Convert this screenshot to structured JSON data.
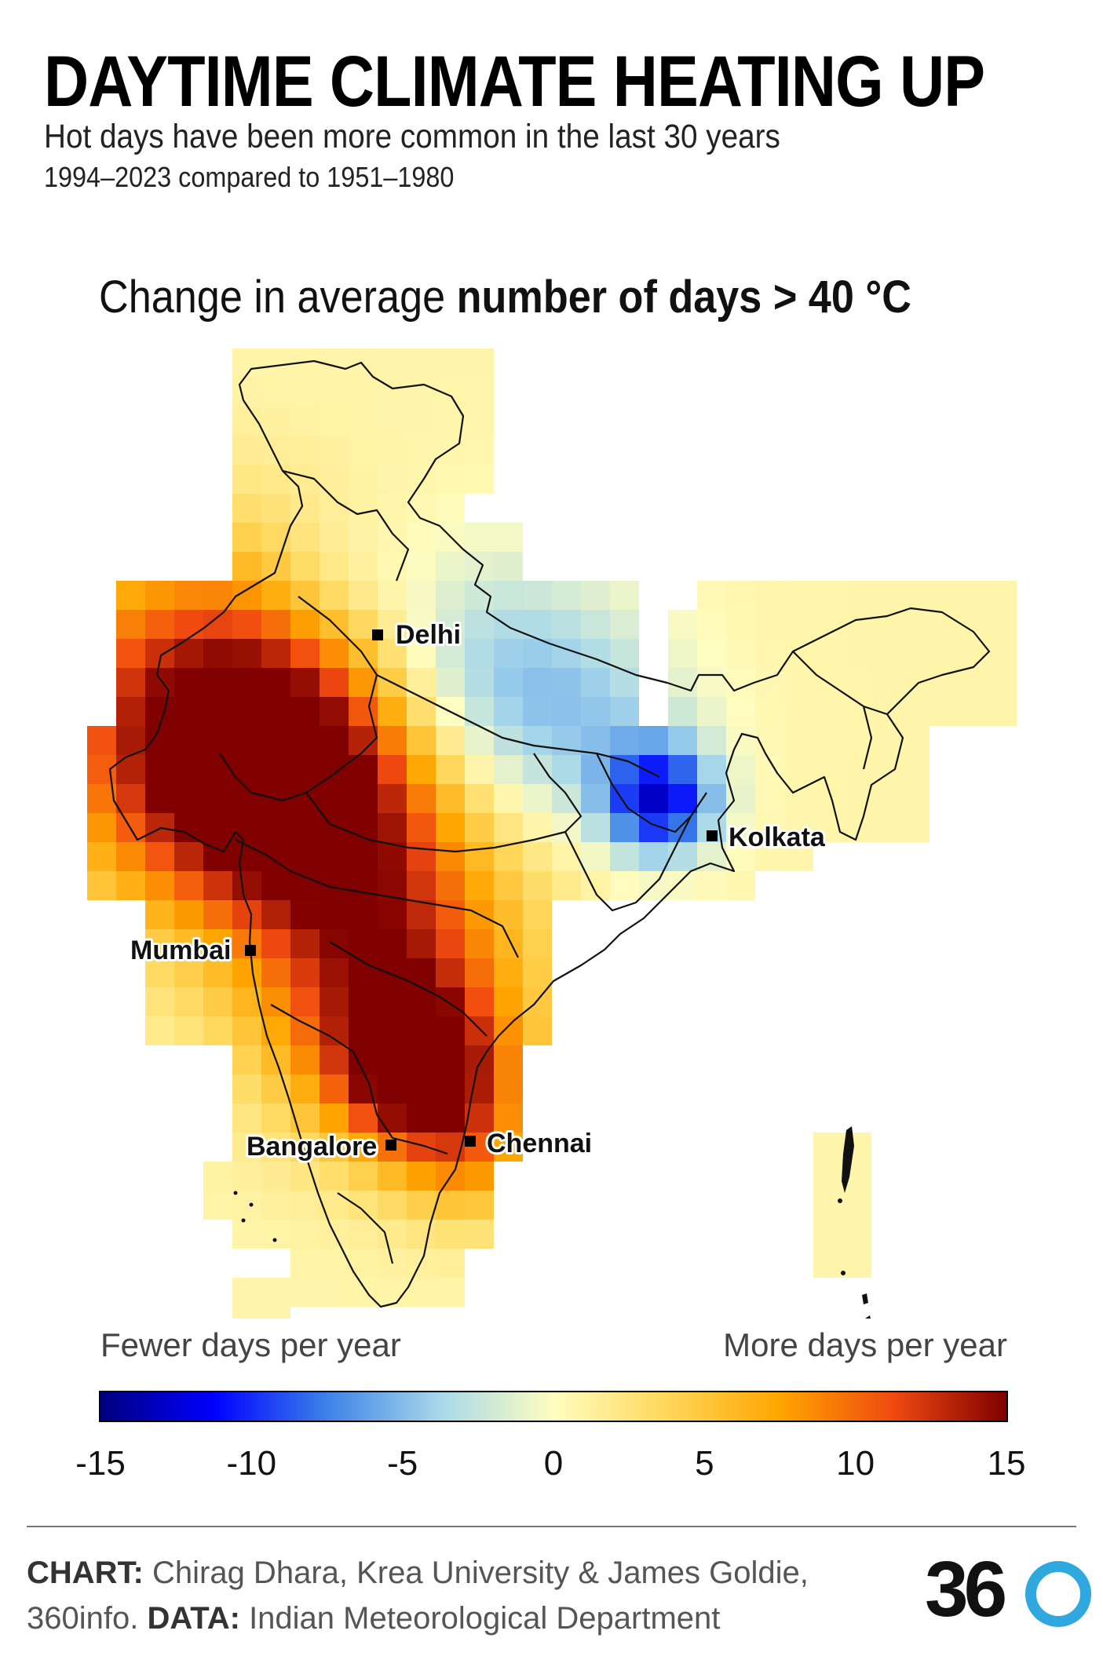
{
  "header": {
    "title": "DAYTIME CLIMATE HEATING UP",
    "subtitle": "Hot days have been more common in the last 30 years",
    "period": "1994–2023 compared to 1951–1980"
  },
  "metric": {
    "prefix": "Change in average ",
    "bold": "number of days > 40 °C"
  },
  "cities": {
    "delhi": "Delhi",
    "kolkata": "Kolkata",
    "mumbai": "Mumbai",
    "bangalore": "Bangalore",
    "chennai": "Chennai"
  },
  "legend": {
    "left_label": "Fewer days per year",
    "right_label": "More days per year",
    "ticks": [
      "-15",
      "-10",
      "-5",
      "0",
      "5",
      "10",
      "15"
    ],
    "range": [
      -15,
      15
    ],
    "colors": [
      "#000080",
      "#0000ff",
      "#3c82e8",
      "#a8d8ea",
      "#fffdc0",
      "#ffd75a",
      "#ffa500",
      "#f04a10",
      "#800000"
    ]
  },
  "footer": {
    "chart_label": "CHART:",
    "chart_text": " Chirag Dhara, Krea University & James Goldie,",
    "line2_prefix": "360info. ",
    "data_label": "DATA:",
    "data_text": " Indian Meteorological Department",
    "logo_number": "36"
  }
}
